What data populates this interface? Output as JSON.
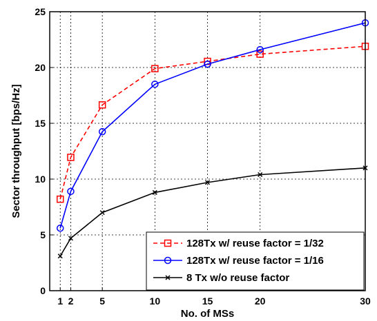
{
  "chart_data": {
    "type": "line",
    "title": "",
    "xlabel": "No. of MSs",
    "ylabel": "Sector throughput [bps/Hz]",
    "xlim": [
      0,
      30
    ],
    "ylim": [
      0,
      25
    ],
    "xticks": [
      1,
      2,
      5,
      10,
      15,
      20,
      30
    ],
    "yticks": [
      0,
      5,
      10,
      15,
      20,
      25
    ],
    "grid": true,
    "grid_style": "dotted",
    "legend_position": "bottom-right",
    "series": [
      {
        "name": "128Tx w/ reuse factor = 1/32",
        "color": "#ff0000",
        "line_style": "dashed",
        "marker": "square",
        "x": [
          1,
          2,
          5,
          10,
          15,
          20,
          30
        ],
        "y": [
          8.2,
          11.95,
          16.65,
          19.9,
          20.55,
          21.2,
          21.9
        ]
      },
      {
        "name": "128Tx w/ reuse factor = 1/16",
        "color": "#0000ff",
        "line_style": "solid",
        "marker": "circle",
        "x": [
          1,
          2,
          5,
          10,
          15,
          20,
          30
        ],
        "y": [
          5.6,
          8.9,
          14.25,
          18.5,
          20.3,
          21.6,
          24.0
        ]
      },
      {
        "name": "8 Tx w/o reuse factor",
        "color": "#000000",
        "line_style": "solid",
        "marker": "x",
        "x": [
          1,
          2,
          5,
          10,
          15,
          20,
          30
        ],
        "y": [
          3.1,
          4.7,
          7.0,
          8.8,
          9.7,
          10.4,
          11.0
        ]
      }
    ]
  }
}
